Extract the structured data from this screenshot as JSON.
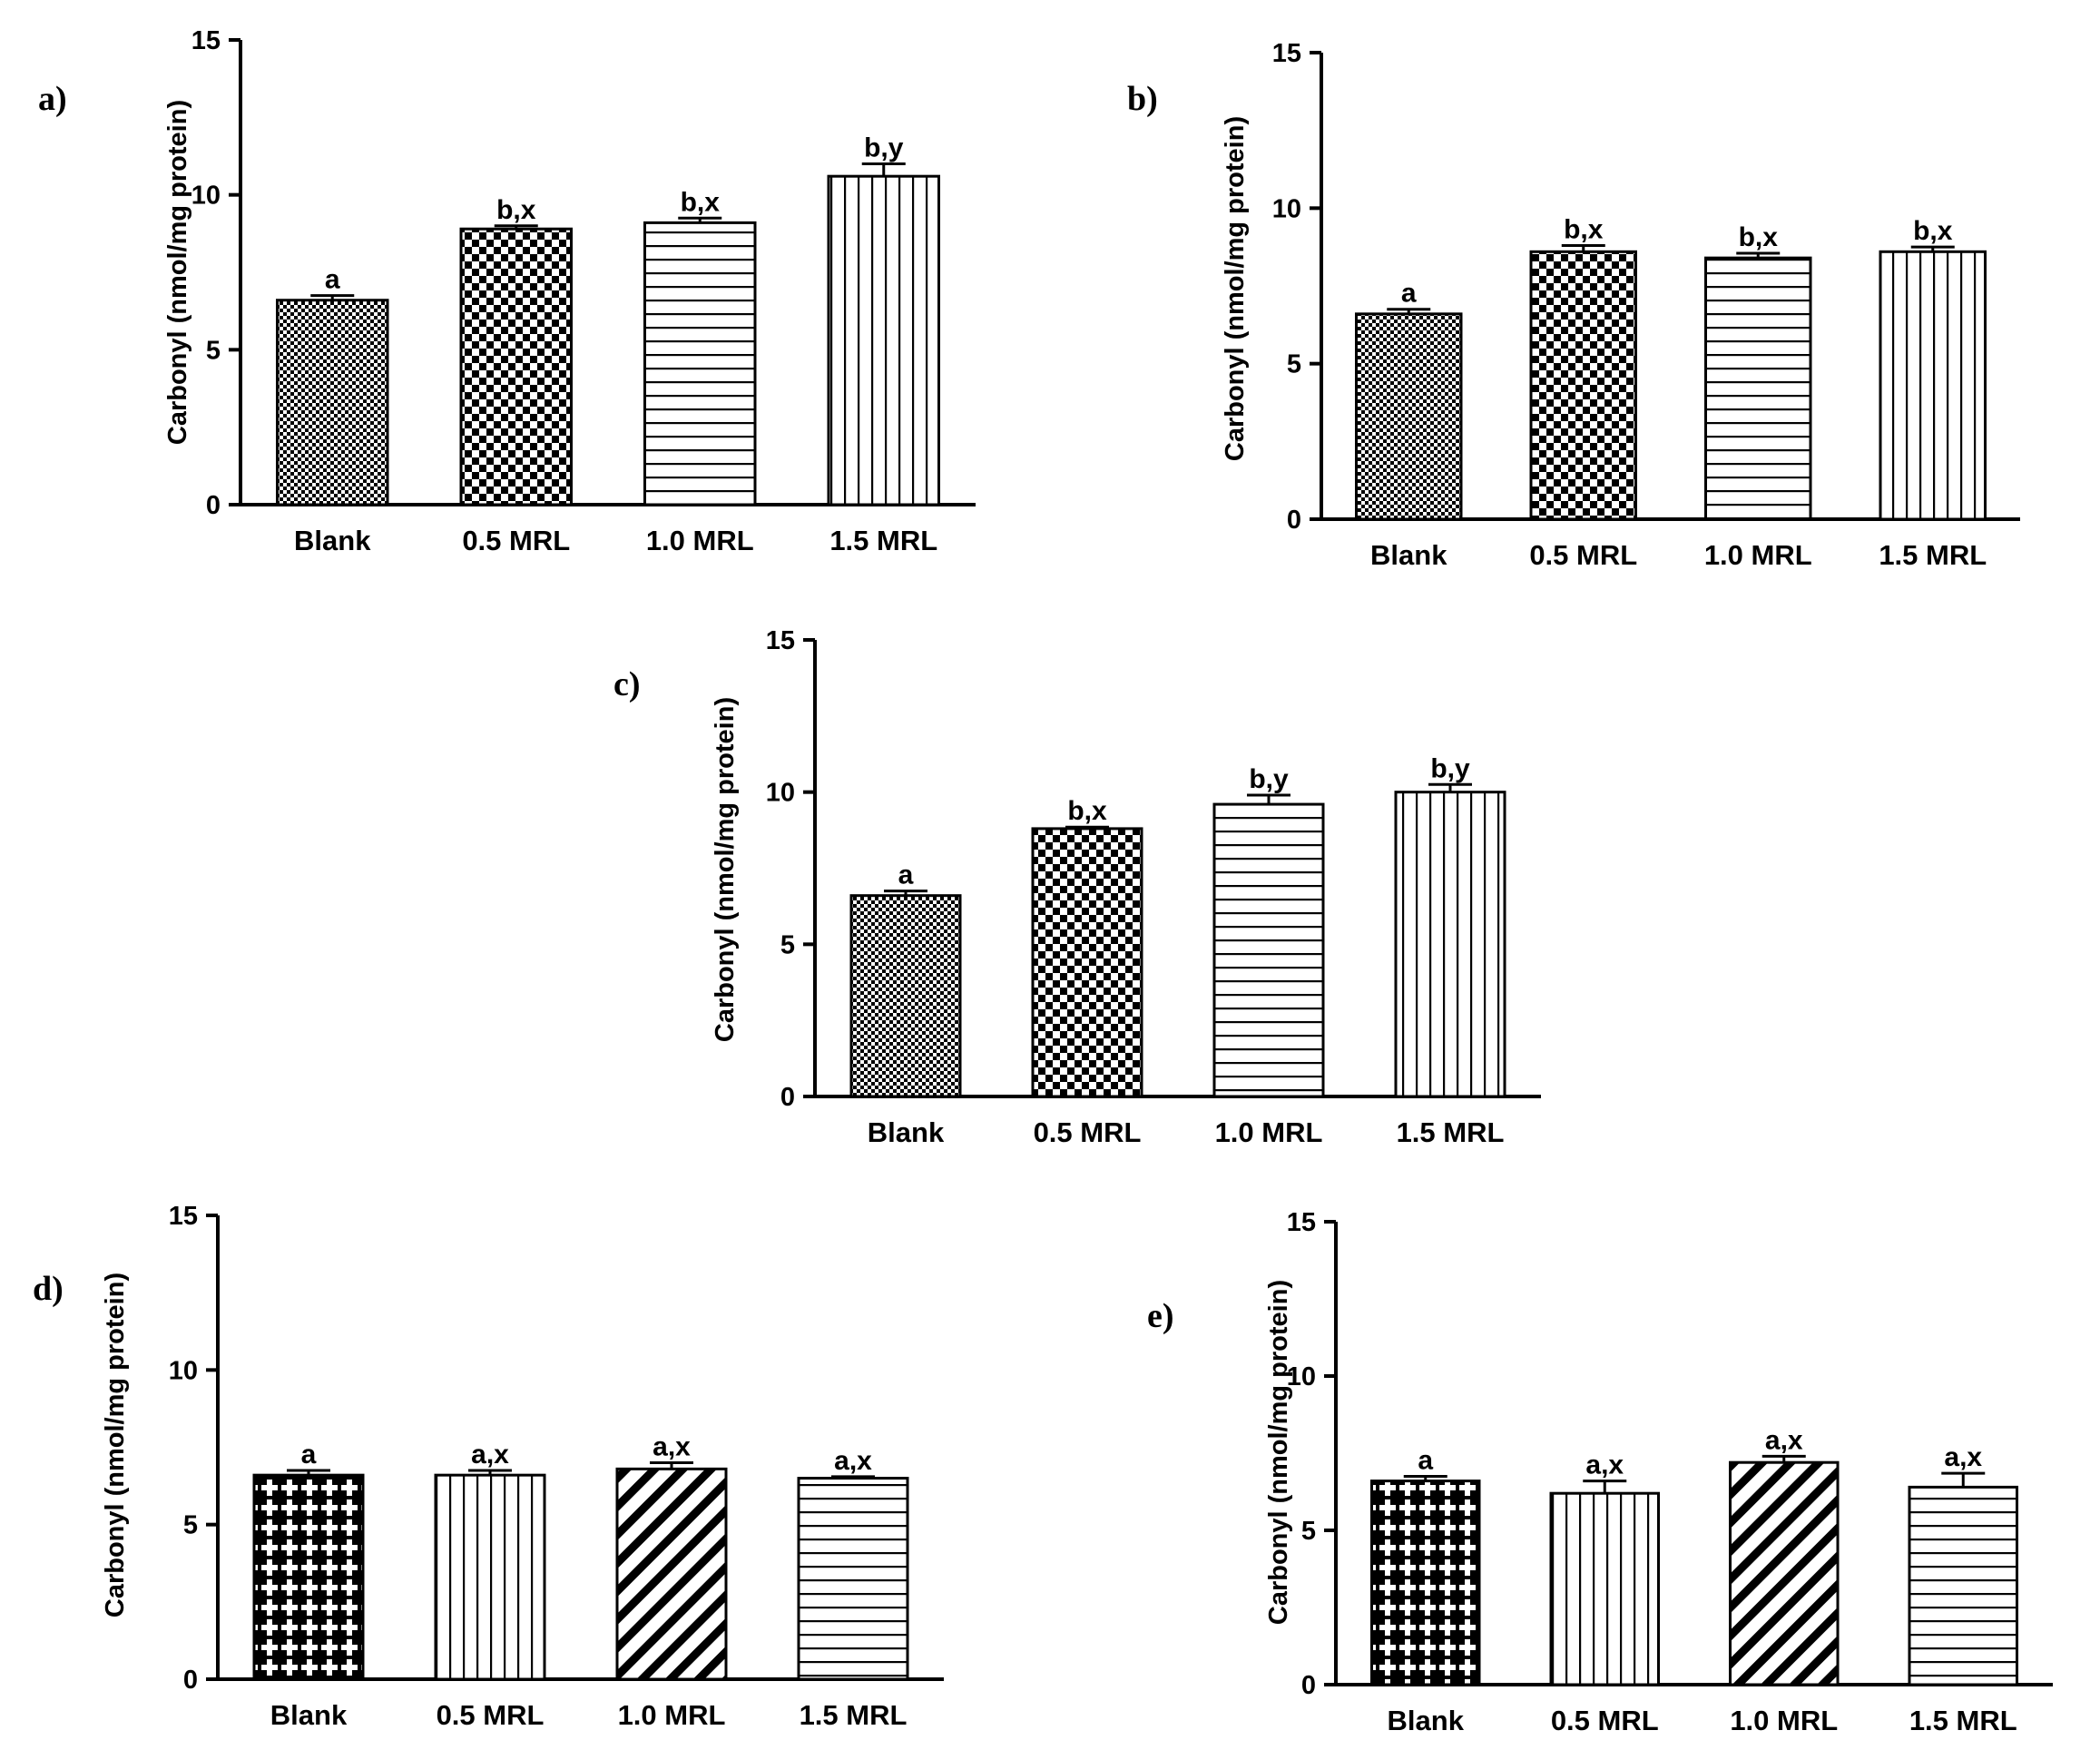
{
  "chart_data": [
    {
      "panel": "a)",
      "type": "bar",
      "ylabel": "Carbonyl (nmol/mg protein)",
      "ylim": [
        0,
        15
      ],
      "yticks": [
        0,
        5,
        10,
        15
      ],
      "categories": [
        "Blank",
        "0.5 MRL",
        "1.0 MRL",
        "1.5 MRL"
      ],
      "values": [
        6.6,
        8.9,
        9.1,
        10.6
      ],
      "errors": [
        0.15,
        0.1,
        0.15,
        0.4
      ],
      "labels": [
        "a",
        "b,x",
        "b,x",
        "b,y"
      ],
      "patterns": [
        "fine-check",
        "check",
        "hstripe",
        "vstripe"
      ]
    },
    {
      "panel": "b)",
      "type": "bar",
      "ylabel": "Carbonyl (nmol/mg protein)",
      "ylim": [
        0,
        15
      ],
      "yticks": [
        0,
        5,
        10,
        15
      ],
      "categories": [
        "Blank",
        "0.5 MRL",
        "1.0 MRL",
        "1.5 MRL"
      ],
      "values": [
        6.6,
        8.6,
        8.4,
        8.6
      ],
      "errors": [
        0.15,
        0.2,
        0.15,
        0.15
      ],
      "labels": [
        "a",
        "b,x",
        "b,x",
        "b,x"
      ],
      "patterns": [
        "fine-check",
        "check",
        "hstripe",
        "vstripe"
      ]
    },
    {
      "panel": "c)",
      "type": "bar",
      "ylabel": "Carbonyl (nmol/mg protein)",
      "ylim": [
        0,
        15
      ],
      "yticks": [
        0,
        5,
        10,
        15
      ],
      "categories": [
        "Blank",
        "0.5 MRL",
        "1.0 MRL",
        "1.5 MRL"
      ],
      "values": [
        6.6,
        8.8,
        9.6,
        10.0
      ],
      "errors": [
        0.15,
        0.05,
        0.3,
        0.25
      ],
      "labels": [
        "a",
        "b,x",
        "b,y",
        "b,y"
      ],
      "patterns": [
        "fine-check",
        "check",
        "hstripe",
        "vstripe"
      ]
    },
    {
      "panel": "d)",
      "type": "bar",
      "ylabel": "Carbonyl (nmol/mg protein)",
      "ylim": [
        0,
        15
      ],
      "yticks": [
        0,
        5,
        10,
        15
      ],
      "categories": [
        "Blank",
        "0.5 MRL",
        "1.0 MRL",
        "1.5 MRL"
      ],
      "values": [
        6.6,
        6.6,
        6.8,
        6.5
      ],
      "errors": [
        0.15,
        0.15,
        0.2,
        0.05
      ],
      "labels": [
        "a",
        "a,x",
        "a,x",
        "a,x"
      ],
      "patterns": [
        "lattice",
        "vstripe",
        "diag",
        "hstripe"
      ]
    },
    {
      "panel": "e)",
      "type": "bar",
      "ylabel": "Carbonyl (nmol/mg protein)",
      "ylim": [
        0,
        15
      ],
      "yticks": [
        0,
        5,
        10,
        15
      ],
      "categories": [
        "Blank",
        "0.5 MRL",
        "1.0 MRL",
        "1.5 MRL"
      ],
      "values": [
        6.6,
        6.2,
        7.2,
        6.4
      ],
      "errors": [
        0.15,
        0.4,
        0.2,
        0.45
      ],
      "labels": [
        "a",
        "a,x",
        "a,x",
        "a,x"
      ],
      "patterns": [
        "lattice",
        "vstripe",
        "diag",
        "hstripe"
      ]
    }
  ]
}
